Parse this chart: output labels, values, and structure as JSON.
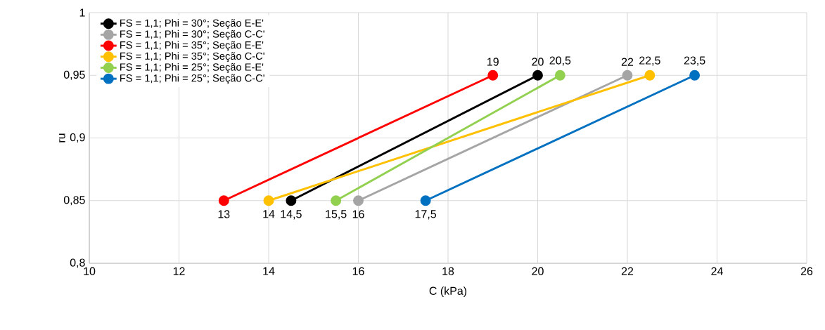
{
  "chart_data": {
    "type": "line",
    "xlabel": "C (kPa)",
    "ylabel": "ru",
    "xlim": [
      10,
      26
    ],
    "xticks": [
      10,
      12,
      14,
      16,
      18,
      20,
      22,
      24,
      26
    ],
    "ylim": [
      0.8,
      1
    ],
    "yticks": [
      {
        "value": 0.8,
        "label": "0,8"
      },
      {
        "value": 0.85,
        "label": "0,85"
      },
      {
        "value": 0.9,
        "label": "0,9"
      },
      {
        "value": 0.95,
        "label": "0,95"
      },
      {
        "value": 1,
        "label": "1"
      }
    ],
    "grid": true,
    "legend": "top left",
    "marker": "circle",
    "line_style": "solid",
    "series": [
      {
        "name": "FS = 1,1; Phi = 30°; Seção E-E'",
        "color": "#000000",
        "x": [
          14.5,
          20
        ],
        "values": [
          0.85,
          0.95
        ]
      },
      {
        "name": "FS = 1,1; Phi = 30°; Seção C-C'",
        "color": "#a5a5a5",
        "x": [
          16,
          22
        ],
        "values": [
          0.85,
          0.95
        ]
      },
      {
        "name": "FS = 1,1; Phi = 35°; Seção E-E'",
        "color": "#ff0000",
        "x": [
          13,
          19
        ],
        "values": [
          0.85,
          0.95
        ]
      },
      {
        "name": "FS = 1,1; Phi = 35°; Seção C-C'",
        "color": "#ffc000",
        "x": [
          14,
          22.5
        ],
        "values": [
          0.85,
          0.95
        ]
      },
      {
        "name": "FS = 1,1; Phi = 25°; Seção E-E'",
        "color": "#92d050",
        "x": [
          15.5,
          20.5
        ],
        "values": [
          0.85,
          0.95
        ]
      },
      {
        "name": "FS = 1,1; Phi = 25°; Seção C-C'",
        "color": "#0070c0",
        "x": [
          17.5,
          23.5
        ],
        "values": [
          0.85,
          0.95
        ]
      }
    ],
    "annotations": [
      {
        "text": "19",
        "x": 19,
        "y": 0.95
      },
      {
        "text": "20",
        "x": 20,
        "y": 0.95
      },
      {
        "text": "20,5",
        "x": 20.5,
        "y": 0.95
      },
      {
        "text": "22",
        "x": 22,
        "y": 0.95
      },
      {
        "text": "22,5",
        "x": 22.5,
        "y": 0.95
      },
      {
        "text": "23,5",
        "x": 23.5,
        "y": 0.95
      },
      {
        "text": "13",
        "x": 13,
        "y": 0.85
      },
      {
        "text": "14",
        "x": 14,
        "y": 0.85
      },
      {
        "text": "14,5",
        "x": 14.5,
        "y": 0.85
      },
      {
        "text": "15,5",
        "x": 15.5,
        "y": 0.85
      },
      {
        "text": "16",
        "x": 16,
        "y": 0.85
      },
      {
        "text": "17,5",
        "x": 17.5,
        "y": 0.85
      }
    ]
  }
}
